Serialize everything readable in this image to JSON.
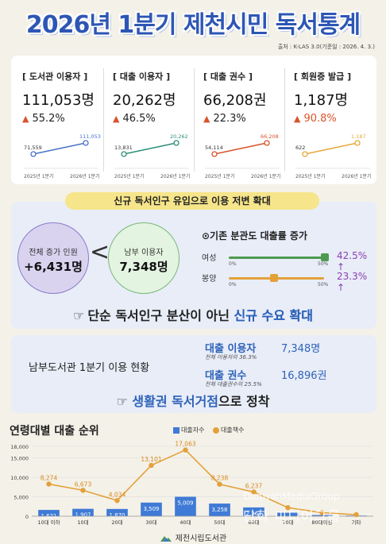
{
  "title": "2026년 1분기 제천시민 독서통계",
  "source": "출처 : K-LAS 3.0(기준일 : 2026. 4. 3.)",
  "stats": [
    {
      "label": "[ 도서관 이용자 ]",
      "value": "111,053명",
      "change": "55.2%",
      "from": "71,559",
      "to": "111,053",
      "x_from": "2025년 1분기",
      "x_to": "2026년 1분기",
      "color": "#4a72c8",
      "from_num": 71559,
      "to_num": 111053
    },
    {
      "label": "[ 대출 이용자 ]",
      "value": "20,262명",
      "change": "46.5%",
      "from": "13,831",
      "to": "20,262",
      "x_from": "2025년 1분기",
      "x_to": "2026년 1분기",
      "color": "#2e8f7a",
      "from_num": 13831,
      "to_num": 20262
    },
    {
      "label": "[ 대출 권수 ]",
      "value": "66,208권",
      "change": "22.3%",
      "from": "54,114",
      "to": "66,208",
      "x_from": "2025년 1분기",
      "x_to": "2026년 1분기",
      "color": "#d9542a",
      "from_num": 54114,
      "to_num": 66208
    },
    {
      "label": "[ 회원증 발급 ]",
      "value": "1,187명",
      "change": "90.8%",
      "from": "622",
      "to": "1,187",
      "x_from": "2025년 1분기",
      "x_to": "2026년 1분기",
      "color": "#e8a93a",
      "from_num": 622,
      "to_num": 1187
    }
  ],
  "section2": {
    "banner": "신규 독서인구 유입으로 이용 저변 확대",
    "circle1_label": "전체 증가 인원",
    "circle1_value": "+6,431명",
    "lt": "<",
    "circle2_label": "남부 이용자",
    "circle2_value": "7,348명",
    "rate_title": "⊙기존 분관도 대출률 증가",
    "rows": [
      {
        "name": "여성",
        "zero": "0%",
        "fifty": "50%",
        "pct": "42.5% ↑",
        "level": 42.5,
        "color": "#4e9a4e",
        "pct_color": "#8a3fb0"
      },
      {
        "name": "봉양",
        "zero": "0%",
        "fifty": "50%",
        "pct": "23.3% ↑",
        "level": 23.3,
        "color": "#e3a13a",
        "pct_color": "#8a3fb0"
      }
    ],
    "headline_prefix": "단순 독서인구 분산이 아닌 ",
    "headline_highlight": "신규 수요 확대"
  },
  "section3": {
    "title": "남부도서관 1분기 이용 현황",
    "rows": [
      {
        "k": "대출 이용자",
        "v": "7,348명",
        "sub": "전체 이용자의 36.3%"
      },
      {
        "k": "대출 권수",
        "v": "16,896권",
        "sub": "전체 대출권수의 25.5%"
      }
    ],
    "headline_highlight": "생활권 독서거점",
    "headline_suffix": "으로 정착"
  },
  "chart_title": "연령대별 대출 순위",
  "legend": {
    "bars": "대출자수",
    "line": "대출책수"
  },
  "chart_data": {
    "type": "bar",
    "categories": [
      "10대 이하",
      "10대",
      "20대",
      "30대",
      "40대",
      "50대",
      "60대",
      "70대",
      "80대이상",
      "기타"
    ],
    "series": [
      {
        "name": "대출자수",
        "values": [
          1621,
          1907,
          1870,
          3509,
          5009,
          3258,
          2261,
          900,
          300,
          150
        ],
        "labels": [
          "1,621",
          "1,907",
          "1,870",
          "3,509",
          "5,009",
          "3,258",
          "2,261",
          "",
          "",
          ""
        ]
      },
      {
        "name": "대출책수",
        "values": [
          8274,
          6673,
          4034,
          13101,
          17063,
          8238,
          6237,
          2200,
          900,
          400
        ],
        "labels": [
          "8,274",
          "6,673",
          "4,034",
          "13,101",
          "17,063",
          "8,238",
          "6,237",
          "",
          "",
          ""
        ]
      }
    ],
    "yticks": [
      "0",
      "5,000",
      "10,000",
      "15,000",
      "18,000"
    ],
    "ytick_values": [
      0,
      5000,
      10000,
      15000,
      18000
    ],
    "ylim": [
      0,
      18000
    ]
  },
  "watermark": "DanwahMediaGroup",
  "watermark2": "단화 미디어그룹",
  "footer": "제천시립도서관"
}
